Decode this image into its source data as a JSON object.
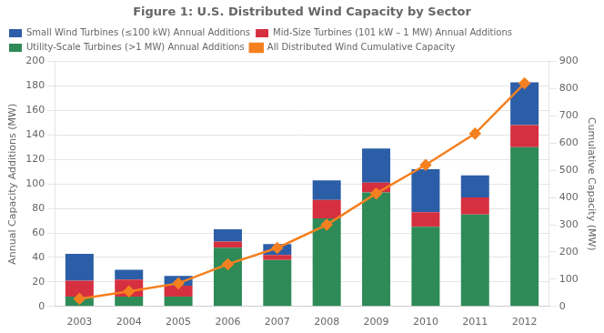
{
  "chart_data": {
    "type": "bar",
    "title": "Figure 1: U.S. Distributed Wind Capacity by Sector",
    "categories": [
      2003,
      2004,
      2005,
      2006,
      2007,
      2008,
      2009,
      2010,
      2011,
      2012
    ],
    "series": [
      {
        "name": "Utility-Scale Turbines (>1 MW) Annual Additions",
        "type": "bar",
        "color": "#2E8B57",
        "values": [
          8,
          8,
          8,
          48,
          38,
          72,
          93,
          65,
          75,
          130
        ]
      },
      {
        "name": "Mid-Size Turbines (101 kW – 1 MW) Annual Additions",
        "type": "bar",
        "color": "#D63040",
        "values": [
          13,
          14,
          9,
          5,
          4,
          15,
          8,
          12,
          14,
          18
        ]
      },
      {
        "name": "Small Wind Turbines (≤100 kW) Annual Additions",
        "type": "bar",
        "color": "#2B5EA7",
        "values": [
          22,
          8,
          8,
          10,
          9,
          16,
          28,
          35,
          18,
          35
        ]
      },
      {
        "name": "All Distributed Wind Cumulative Capacity",
        "type": "line",
        "axis": "y2",
        "marker": "diamond",
        "color": "#F58020",
        "values": [
          28,
          55,
          85,
          155,
          215,
          300,
          415,
          520,
          635,
          820
        ]
      }
    ],
    "stacked": true,
    "ylabel": "Annual Capacity Additions (MW)",
    "y2label": "Cumulative Capacity (MW)",
    "ylim": [
      0,
      200
    ],
    "yticks": [
      0,
      20,
      40,
      60,
      80,
      100,
      120,
      140,
      160,
      180,
      200
    ],
    "y2lim": [
      0,
      900
    ],
    "y2ticks": [
      0,
      100,
      200,
      300,
      400,
      500,
      600,
      700,
      800,
      900
    ],
    "grid": true,
    "legend": "upper left"
  }
}
